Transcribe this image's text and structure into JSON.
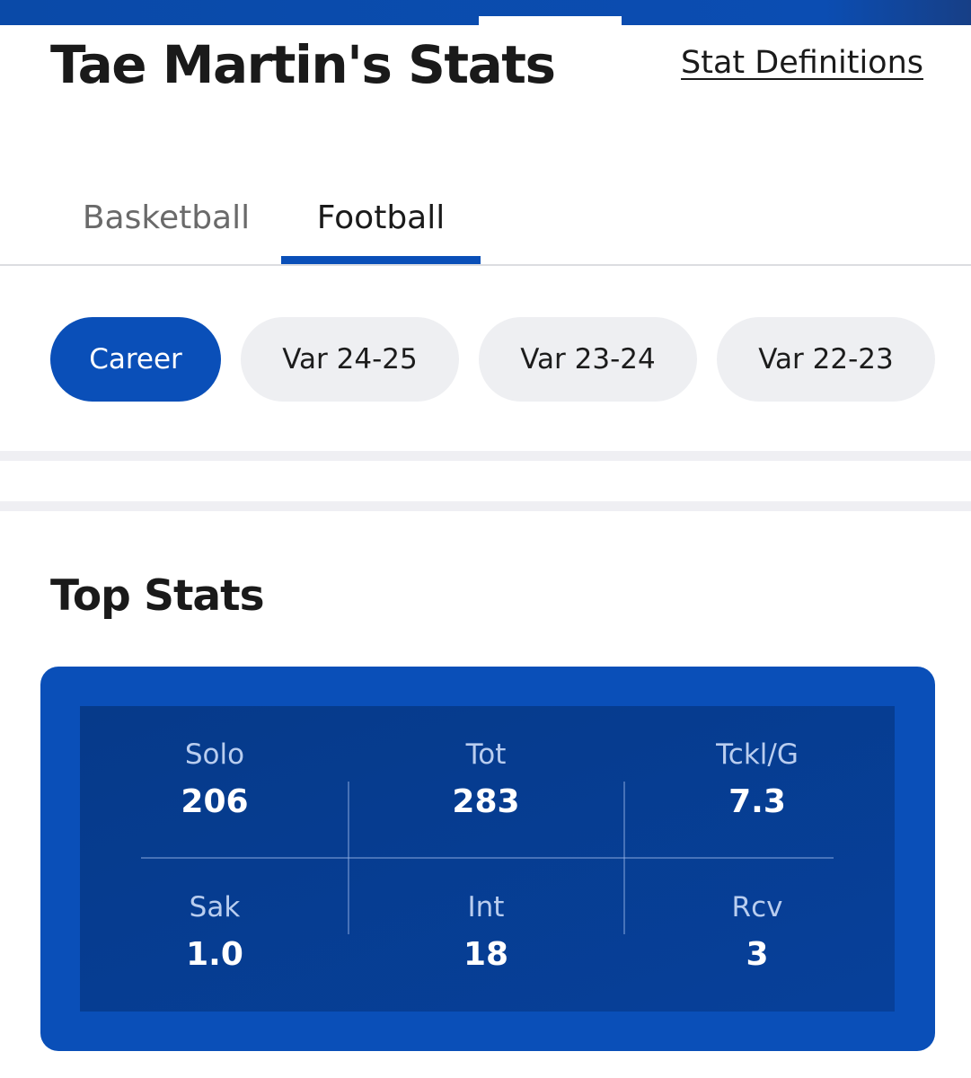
{
  "header": {
    "title": "Tae Martin's Stats",
    "stat_definitions_link": "Stat Definitions"
  },
  "sport_tabs": [
    {
      "label": "Basketball",
      "selected": false
    },
    {
      "label": "Football",
      "selected": true
    }
  ],
  "season_pills": [
    {
      "label": "Career",
      "selected": true
    },
    {
      "label": "Var 24-25",
      "selected": false
    },
    {
      "label": "Var 23-24",
      "selected": false
    },
    {
      "label": "Var 22-23",
      "selected": false
    }
  ],
  "top_stats": {
    "title": "Top Stats",
    "stats": [
      {
        "label": "Solo",
        "value": "206"
      },
      {
        "label": "Tot",
        "value": "283"
      },
      {
        "label": "Tckl/G",
        "value": "7.3"
      },
      {
        "label": "Sak",
        "value": "1.0"
      },
      {
        "label": "Int",
        "value": "18"
      },
      {
        "label": "Rcv",
        "value": "3"
      }
    ]
  },
  "colors": {
    "accent": "#0a4fb8",
    "card_inner": "#063a8a",
    "pill_inactive": "#eeeff2",
    "stat_label": "#b9cdef"
  }
}
